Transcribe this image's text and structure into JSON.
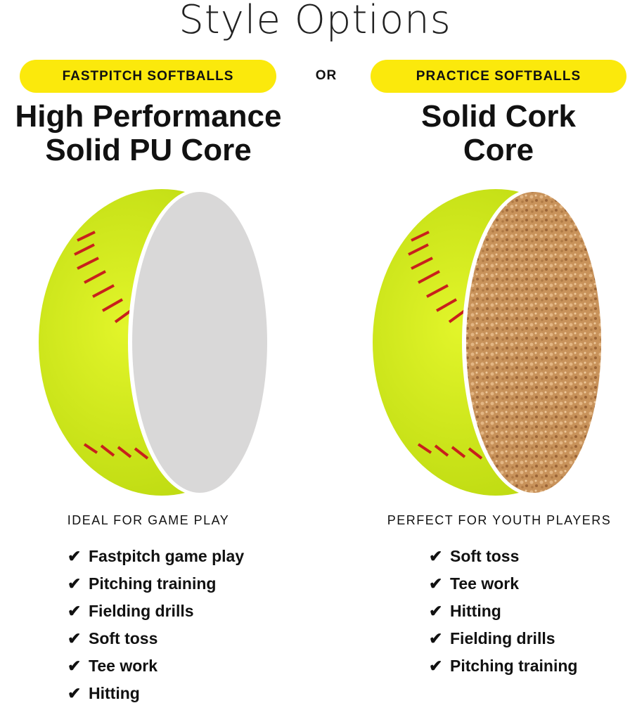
{
  "title": "Style Options",
  "separator": "OR",
  "colors": {
    "pill": "#fbe90c",
    "ball": "#d6ef1c",
    "stitch": "#c8201c",
    "pu_core": "#d9d8d8",
    "cork_core": "#c8925a"
  },
  "options": [
    {
      "pill": "FASTPITCH SOFTBALLS",
      "heading_line1": "High Performance",
      "heading_line2": "Solid PU Core",
      "subtitle": "IDEAL FOR GAME PLAY",
      "check_icon": "checkmark-icon",
      "features": [
        "Fastpitch game play",
        "Pitching training",
        "Fielding drills",
        "Soft toss",
        "Tee work",
        "Hitting"
      ]
    },
    {
      "pill": "PRACTICE SOFTBALLS",
      "heading_line1": "Solid Cork",
      "heading_line2": "Core",
      "subtitle": "PERFECT FOR YOUTH PLAYERS",
      "check_icon": "checkmark-icon",
      "features": [
        "Soft toss",
        "Tee work",
        "Hitting",
        "Fielding drills",
        "Pitching training"
      ]
    }
  ]
}
